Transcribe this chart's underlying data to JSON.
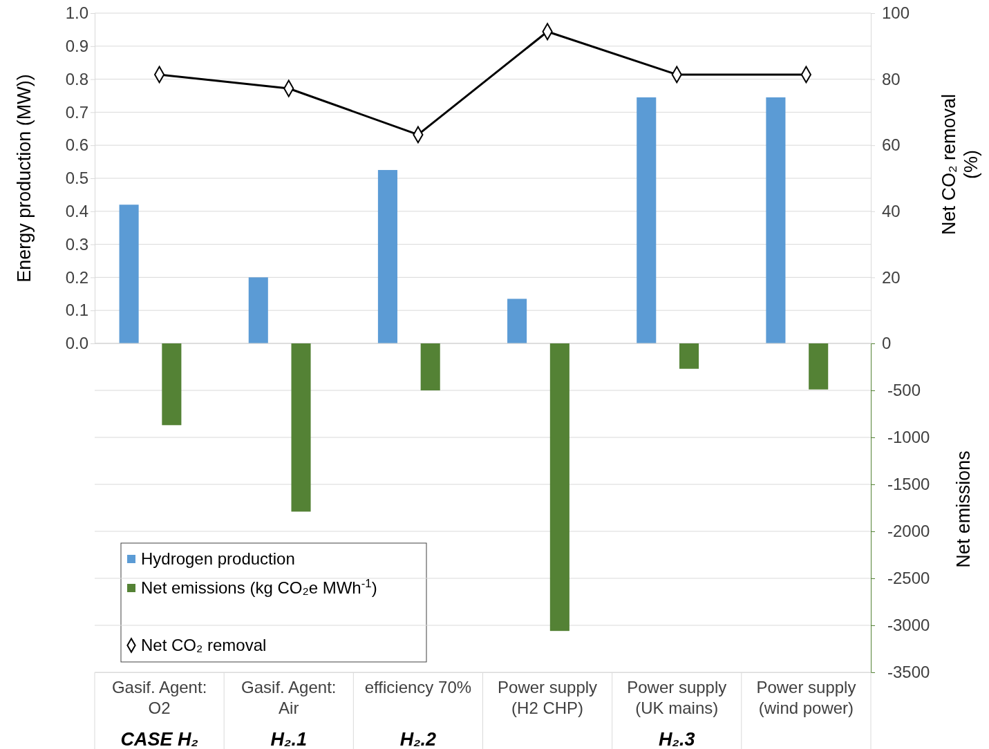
{
  "chart_data": [
    {
      "type": "bar",
      "categories": [
        null,
        null,
        null,
        null,
        null,
        null
      ],
      "series": [
        {
          "name": "Hydrogen production",
          "color": "#5b9bd5",
          "values": [
            0.42,
            0.2,
            0.525,
            0.135,
            0.745,
            0.745
          ]
        },
        {
          "name": "Net CO₂ removal",
          "type": "line",
          "axis": "y2",
          "color": "#000000",
          "marker": "diamond",
          "values": [
            81.4,
            77.2,
            63.2,
            94.4,
            81.4,
            81.4
          ]
        }
      ],
      "ylabel": "Energy production (MW))",
      "y2label": "Net CO₂ removal (%)",
      "ylim": [
        0,
        1
      ],
      "yticks": [
        {
          "value": 0,
          "label": "0.0"
        },
        0.1,
        0.2,
        0.3,
        0.4,
        0.5,
        0.6,
        0.7,
        0.8,
        0.9,
        {
          "value": 1,
          "label": "1.0"
        }
      ],
      "y2lim": [
        0,
        100
      ],
      "y2ticks": [
        0,
        20,
        40,
        60,
        80,
        100
      ],
      "grid": "y",
      "tick_labels": "y",
      "legend": "bottom left"
    },
    {
      "type": "bar",
      "categories": [
        "Gasif. Agent:\nO2",
        "Gasif. Agent:\nAir",
        "efficiency 70%",
        "Power supply\n(H2 CHP)",
        "Power supply\n(UK mains)",
        "Power supply\n(wind power)"
      ],
      "series": [
        {
          "name": "Net emissions (kg CO₂e MWh$^{-1}$)",
          "color": "#548235",
          "values": [
            -870,
            -1790,
            -500,
            -3060,
            -270,
            -490
          ]
        }
      ],
      "ylabel": "Net emissions",
      "ylim": [
        -3500,
        0
      ],
      "yticks": [
        -3500,
        -3000,
        -2500,
        -2000,
        -1500,
        -1000,
        -500
      ],
      "grid": "y",
      "legend": "bottom left",
      "annotations": [
        "CASE H₂",
        "H₂.1",
        "H₂.2",
        "H₂.3"
      ]
    }
  ]
}
